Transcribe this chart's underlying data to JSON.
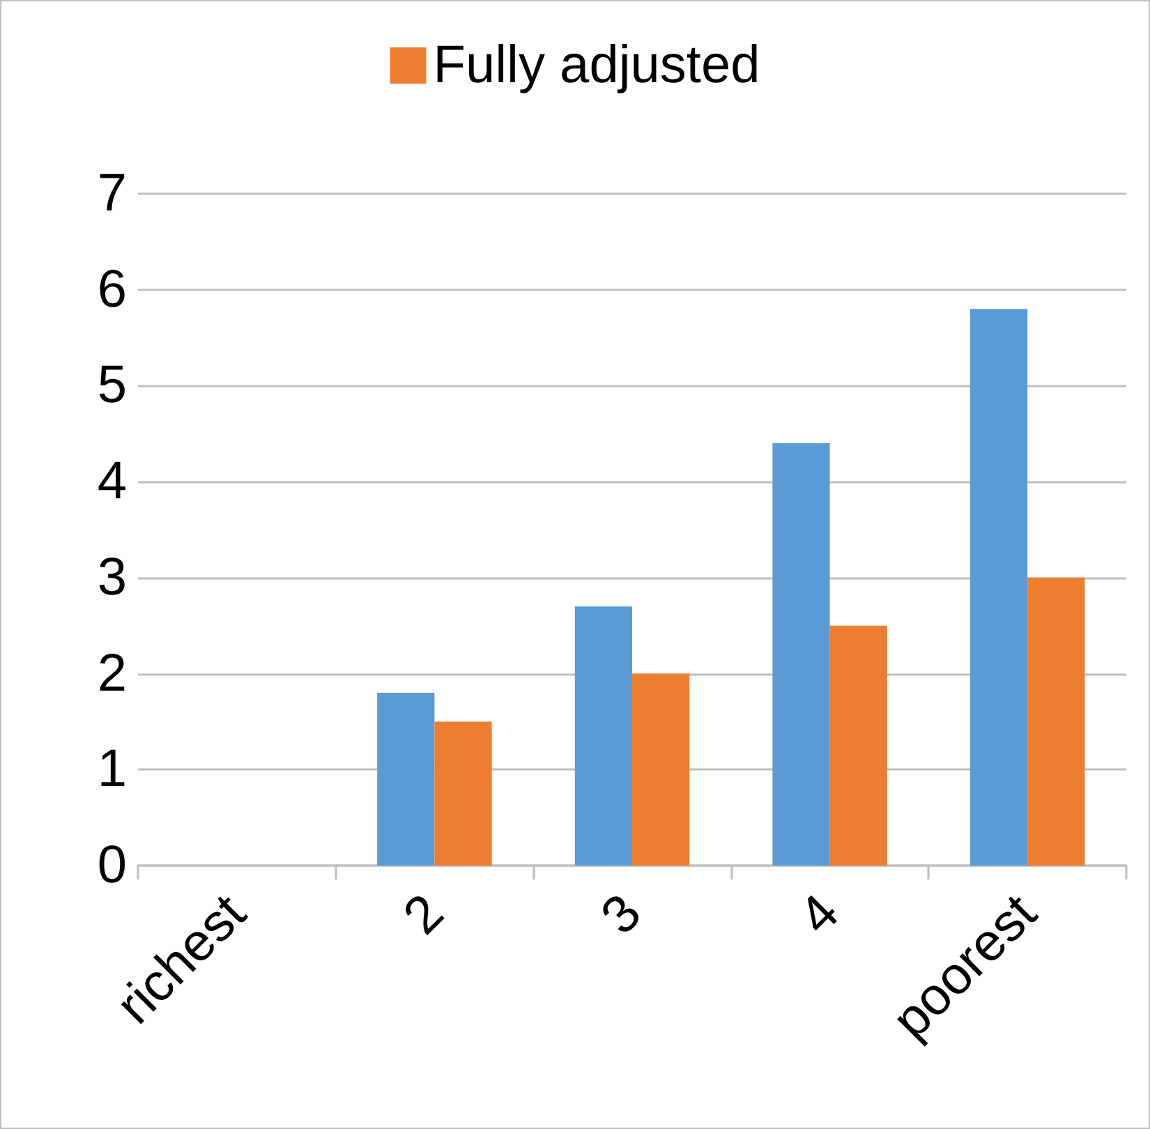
{
  "chart_data": {
    "type": "bar",
    "categories": [
      "richest",
      "2",
      "3",
      "4",
      "poorest"
    ],
    "series": [
      {
        "color": "#5b9bd5",
        "values": [
          null,
          1.8,
          2.7,
          4.4,
          5.8
        ]
      },
      {
        "name": "Fully adjusted",
        "color": "#ed7d31",
        "values": [
          null,
          1.5,
          2.0,
          2.5,
          3.0
        ]
      }
    ],
    "ylim": [
      0,
      7
    ],
    "yticks": [
      0,
      1,
      2,
      3,
      4,
      5,
      6,
      7
    ],
    "grid": "y",
    "legend": "top"
  }
}
